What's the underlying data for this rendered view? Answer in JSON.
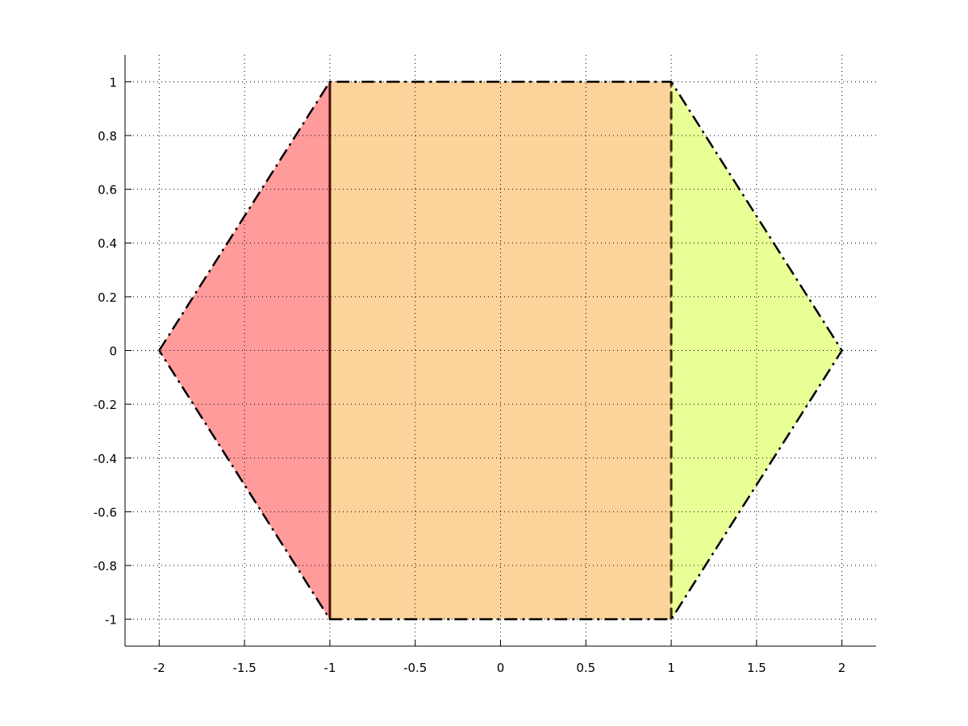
{
  "chart_data": {
    "type": "area",
    "title": "",
    "xlabel": "",
    "ylabel": "",
    "xlim": [
      -2.2,
      2.2
    ],
    "ylim": [
      -1.1,
      1.1
    ],
    "grid": true,
    "x_ticks": [
      -2,
      -1.5,
      -1,
      -0.5,
      0,
      0.5,
      1,
      1.5,
      2
    ],
    "x_tick_labels": [
      "-2",
      "-1.5",
      "-1",
      "-0.5",
      "0",
      "0.5",
      "1",
      "1.5",
      "2"
    ],
    "y_ticks": [
      -1,
      -0.8,
      -0.6,
      -0.4,
      -0.2,
      0,
      0.2,
      0.4,
      0.6,
      0.8,
      1
    ],
    "y_tick_labels": [
      "-1",
      "-0.8",
      "-0.6",
      "-0.4",
      "-0.2",
      "0",
      "0.2",
      "0.4",
      "0.6",
      "0.8",
      "1"
    ],
    "regions": [
      {
        "id": "left-triangle",
        "color": "#ff9b9b",
        "edge": "dashed",
        "points": [
          [
            -2,
            0
          ],
          [
            -1,
            1
          ],
          [
            -1,
            -1
          ]
        ]
      },
      {
        "id": "center-rectangle",
        "color": "#fcd39a",
        "edge": "dashdot",
        "points": [
          [
            -1,
            -1
          ],
          [
            -1,
            1
          ],
          [
            1,
            1
          ],
          [
            1,
            -1
          ]
        ]
      },
      {
        "id": "right-triangle",
        "color": "#e8ff95",
        "edge": "dashed",
        "points": [
          [
            1,
            1
          ],
          [
            2,
            0
          ],
          [
            1,
            -1
          ]
        ]
      }
    ],
    "outline": {
      "color": "#000000",
      "style": "dashdot",
      "points": [
        [
          -2,
          0
        ],
        [
          -1,
          1
        ],
        [
          1,
          1
        ],
        [
          2,
          0
        ],
        [
          1,
          -1
        ],
        [
          -1,
          -1
        ],
        [
          -2,
          0
        ]
      ]
    },
    "dividers": [
      {
        "x": -1,
        "y": [
          -1,
          1
        ],
        "color": "#4a0f0f",
        "style": "solid"
      },
      {
        "x": 1,
        "y": [
          -1,
          1
        ],
        "color": "#3d2a00",
        "style": "dashed"
      }
    ]
  }
}
